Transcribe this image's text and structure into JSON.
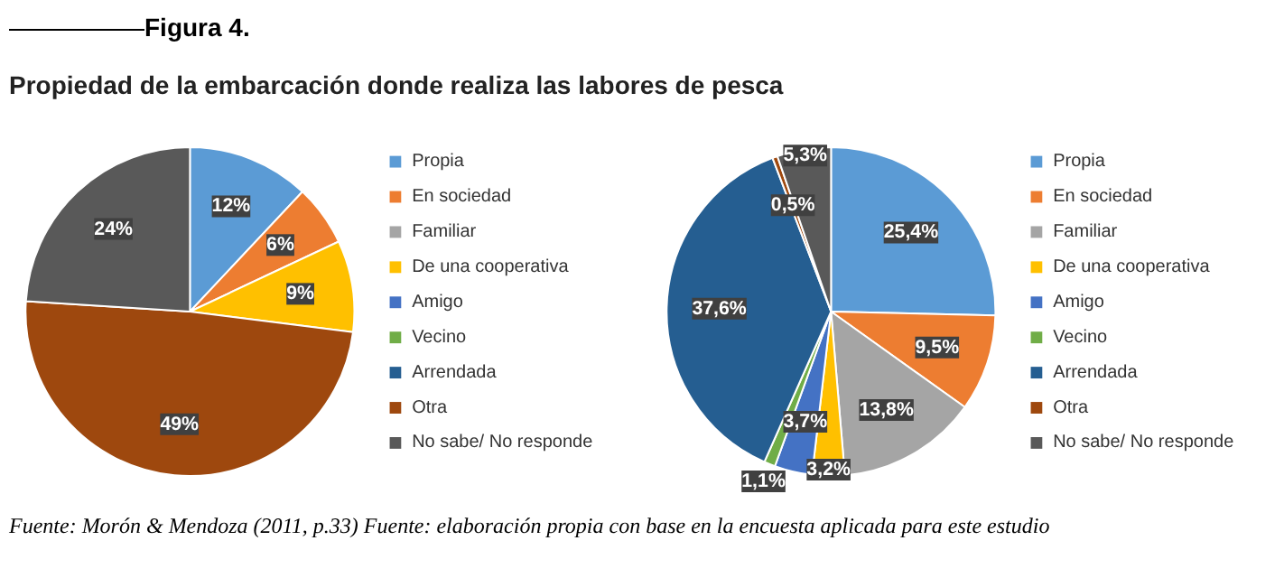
{
  "chart_data": [
    {
      "type": "pie",
      "title": "Figura 4.",
      "subtitle": "Propiedad de la embarcación donde realiza las labores de pesca",
      "categories": [
        "Propia",
        "En sociedad",
        "Familiar",
        "De una cooperativa",
        "Amigo",
        "Vecino",
        "Arrendada",
        "Otra",
        "No sabe/ No responde"
      ],
      "values": [
        12,
        6,
        0,
        9,
        0,
        0,
        0,
        49,
        24
      ],
      "colors": [
        "#5b9bd5",
        "#ed7d31",
        "#a5a5a5",
        "#ffc000",
        "#4472c4",
        "#70ad47",
        "#255e91",
        "#9e480e",
        "#595959"
      ],
      "value_labels": [
        "12%",
        "6%",
        null,
        "9%",
        null,
        null,
        null,
        "49%",
        "24%"
      ],
      "legend": "right",
      "annotations": [
        "Fuente: Morón & Mendoza (2011, p.33)"
      ]
    },
    {
      "type": "pie",
      "categories": [
        "Propia",
        "En sociedad",
        "Familiar",
        "De una cooperativa",
        "Amigo",
        "Vecino",
        "Arrendada",
        "Otra",
        "No sabe/ No responde"
      ],
      "values": [
        25.4,
        9.5,
        13.8,
        3.2,
        3.7,
        1.1,
        37.6,
        0.5,
        5.3
      ],
      "colors": [
        "#5b9bd5",
        "#ed7d31",
        "#a5a5a5",
        "#ffc000",
        "#4472c4",
        "#70ad47",
        "#255e91",
        "#9e480e",
        "#595959"
      ],
      "value_labels": [
        "25,4%",
        "9,5%",
        "13,8%",
        "3,2%",
        "3,7%",
        "1,1%",
        "37,6%",
        "0,5%",
        "5,3%"
      ],
      "legend": "right",
      "annotations": [
        "Fuente: elaboración propia con base en la encuesta aplicada para este estudio"
      ]
    }
  ]
}
